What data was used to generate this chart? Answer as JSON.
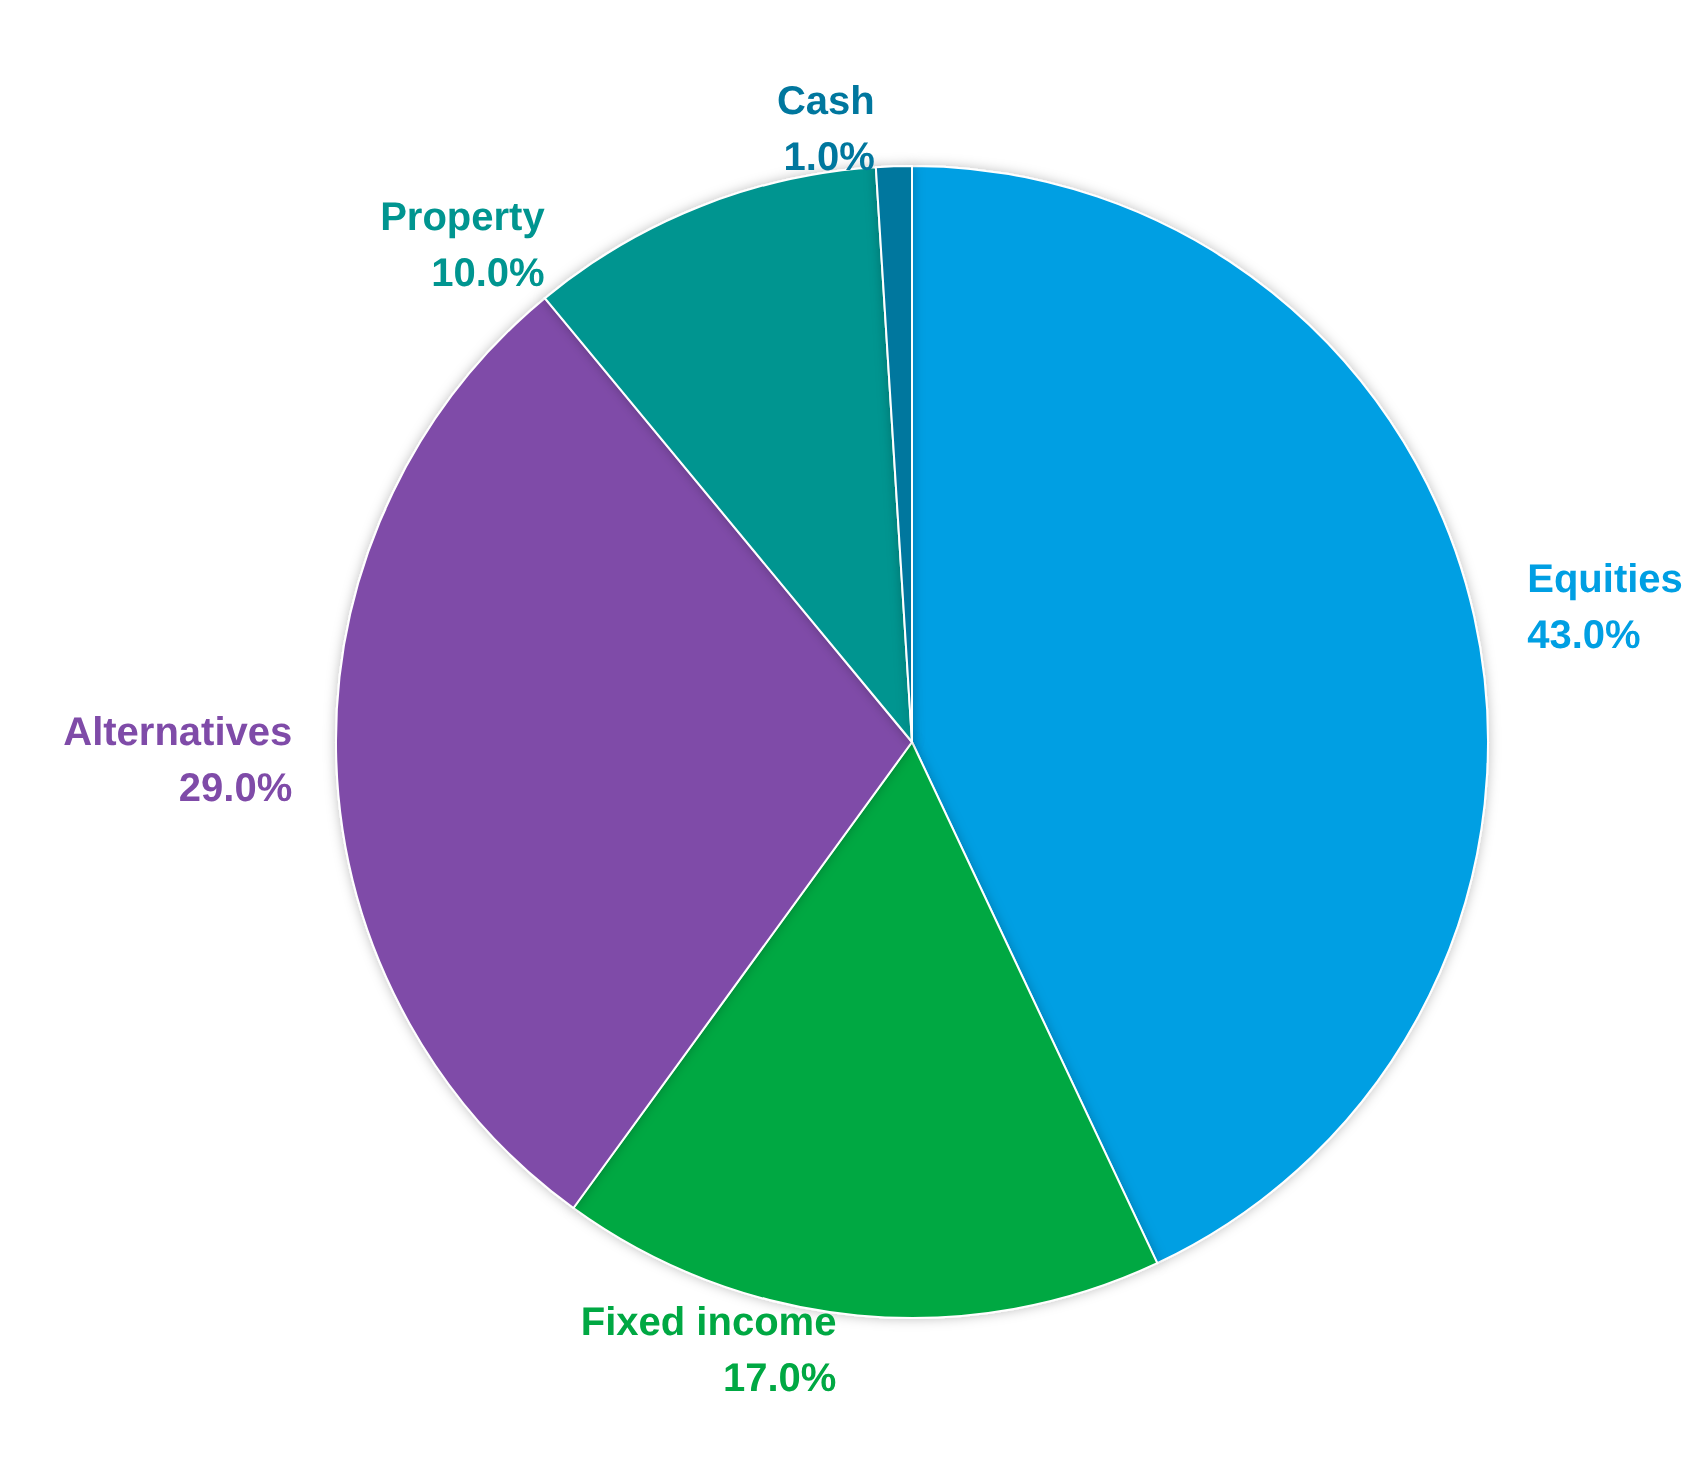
{
  "chart_data": {
    "type": "pie",
    "categories": [
      "Equities",
      "Fixed income",
      "Alternatives",
      "Property",
      "Cash"
    ],
    "values": [
      43,
      17,
      29,
      10,
      1
    ],
    "value_labels": [
      "43.0%",
      "17.0%",
      "29.0%",
      "10.0%",
      "1.0%"
    ],
    "colors": [
      "#009fe3",
      "#00a843",
      "#7f4ba8",
      "#009590",
      "#00779e"
    ],
    "legend": false
  }
}
